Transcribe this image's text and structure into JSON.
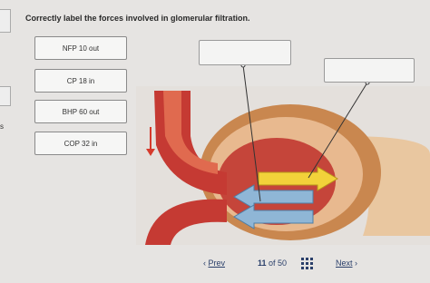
{
  "instruction": "Correctly label the forces involved in glomerular filtration.",
  "labels": [
    "NFP 10 out",
    "CP 18 in",
    "BHP 60 out",
    "COP 32 in"
  ],
  "edge_text": "s",
  "nav": {
    "prev": "Prev",
    "page": "11",
    "total": "of 50",
    "next": "Next"
  }
}
